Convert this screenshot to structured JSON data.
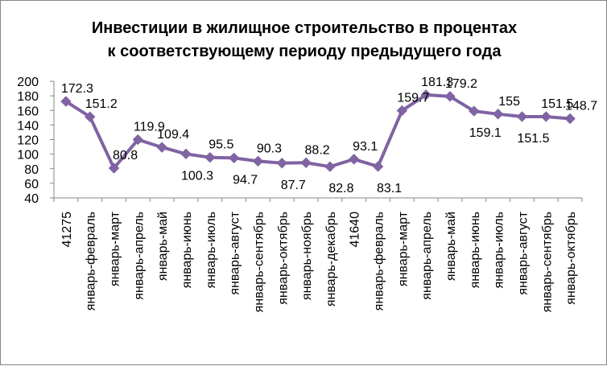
{
  "chart_data": {
    "type": "line",
    "title": "Инвестиции в жилищное строительство в процентах к соответствующему периоду предыдущего года",
    "title_lines": [
      "Инвестиции в жилищное строительство в процентах",
      "к соответствующему периоду предыдущего года"
    ],
    "xlabel": "",
    "ylabel": "",
    "ylim": [
      40,
      200
    ],
    "yticks": [
      40,
      60,
      80,
      100,
      120,
      140,
      160,
      180,
      200
    ],
    "grid": false,
    "legend": "none",
    "categories": [
      "41275",
      "январь-февраль",
      "январь-март",
      "январь-апрель",
      "январь-май",
      "январь-июнь",
      "январь-июль",
      "январь-август",
      "январь-сентябрь",
      "январь-октябрь",
      "январь-ноябрь",
      "январь-декабрь",
      "41640",
      "январь-февраль",
      "январь-март",
      "январь-апрель",
      "январь-май",
      "январь-июнь",
      "январь-июль",
      "январь-август",
      "январь-сентябрь",
      "январь-октябрь"
    ],
    "series": [
      {
        "name": "",
        "color": "#7f63a2",
        "values": [
          172.3,
          151.2,
          80.8,
          119.9,
          109.4,
          100.3,
          95.5,
          94.7,
          90.3,
          87.7,
          88.2,
          82.8,
          93.1,
          83.1,
          159.7,
          181.3,
          179.2,
          159.1,
          155,
          151.5,
          151.5,
          148.7
        ],
        "labels": [
          "172.3",
          "151.2",
          "80.8",
          "119.9",
          "109.4",
          "100.3",
          "95.5",
          "94.7",
          "90.3",
          "87.7",
          "88.2",
          "82.8",
          "93.1",
          "83.1",
          "159.7",
          "181.3",
          "179.2",
          "159.1",
          "155",
          "151.5",
          "151.5",
          "148.7"
        ]
      }
    ]
  }
}
